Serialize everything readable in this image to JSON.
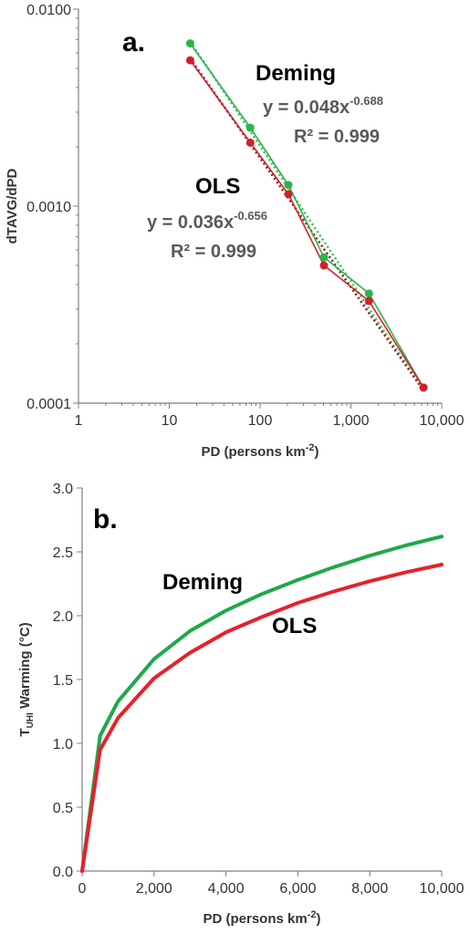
{
  "chart_data": [
    {
      "panel": "a.",
      "type": "scatter",
      "xscale": "log",
      "yscale": "log",
      "xlabel": "PD (persons km",
      "xlabel_sup": "-2",
      "xlabel_end": ")",
      "ylabel": "dTAVG/dPD",
      "xlim": [
        1,
        10000
      ],
      "ylim": [
        0.0001,
        0.01
      ],
      "xticks": [
        1,
        10,
        100,
        1000,
        10000
      ],
      "xtick_labels": [
        "1",
        "10",
        "100",
        "1,000",
        "10,000"
      ],
      "yticks": [
        0.0001,
        0.001,
        0.01
      ],
      "ytick_labels": [
        "0.0001",
        "0.0010",
        "0.0100"
      ],
      "series": [
        {
          "name": "Deming",
          "color": "#2DB34A",
          "x": [
            17,
            78,
            205,
            505,
            1580,
            6300
          ],
          "y": [
            0.0067,
            0.0025,
            0.00128,
            0.00055,
            0.00036,
            0.00012
          ],
          "fit": {
            "a": 0.048,
            "b": -0.688
          },
          "equation": "y = 0.048x",
          "equation_exp": "-0.688",
          "r2": "R² = 0.999"
        },
        {
          "name": "OLS",
          "color": "#D0202E",
          "x": [
            17,
            78,
            205,
            505,
            1580,
            6300
          ],
          "y": [
            0.0055,
            0.0021,
            0.00115,
            0.0005,
            0.00033,
            0.00012
          ],
          "fit": {
            "a": 0.036,
            "b": -0.656
          },
          "equation": "y = 0.036x",
          "equation_exp": "-0.656",
          "r2": "R² = 0.999"
        }
      ]
    },
    {
      "panel": "b.",
      "type": "line",
      "xlabel": "PD (persons km",
      "xlabel_sup": "-2",
      "xlabel_end": ")",
      "ylabel_main": "T",
      "ylabel_sub": "UHI",
      "ylabel_rest": " Warming (°C)",
      "xlim": [
        0,
        10000
      ],
      "ylim": [
        0,
        3
      ],
      "xticks": [
        0,
        2000,
        4000,
        6000,
        8000,
        10000
      ],
      "xtick_labels": [
        "0",
        "2,000",
        "4,000",
        "6,000",
        "8,000",
        "10,000"
      ],
      "yticks": [
        0,
        0.5,
        1,
        1.5,
        2,
        2.5,
        3
      ],
      "ytick_labels": [
        "0.0",
        "0.5",
        "1.0",
        "1.5",
        "2.0",
        "2.5",
        "3.0"
      ],
      "series": [
        {
          "name": "Deming",
          "color": "#1FA84A",
          "x": [
            0,
            500,
            1000,
            2000,
            3000,
            4000,
            5000,
            6000,
            7000,
            8000,
            9000,
            10000
          ],
          "y": [
            0.0,
            1.06,
            1.33,
            1.66,
            1.88,
            2.04,
            2.17,
            2.28,
            2.38,
            2.47,
            2.55,
            2.62
          ]
        },
        {
          "name": "OLS",
          "color": "#E8202A",
          "x": [
            0,
            500,
            1000,
            2000,
            3000,
            4000,
            5000,
            6000,
            7000,
            8000,
            9000,
            10000
          ],
          "y": [
            0.0,
            0.95,
            1.2,
            1.51,
            1.71,
            1.87,
            1.99,
            2.1,
            2.19,
            2.27,
            2.34,
            2.4
          ]
        }
      ]
    }
  ]
}
